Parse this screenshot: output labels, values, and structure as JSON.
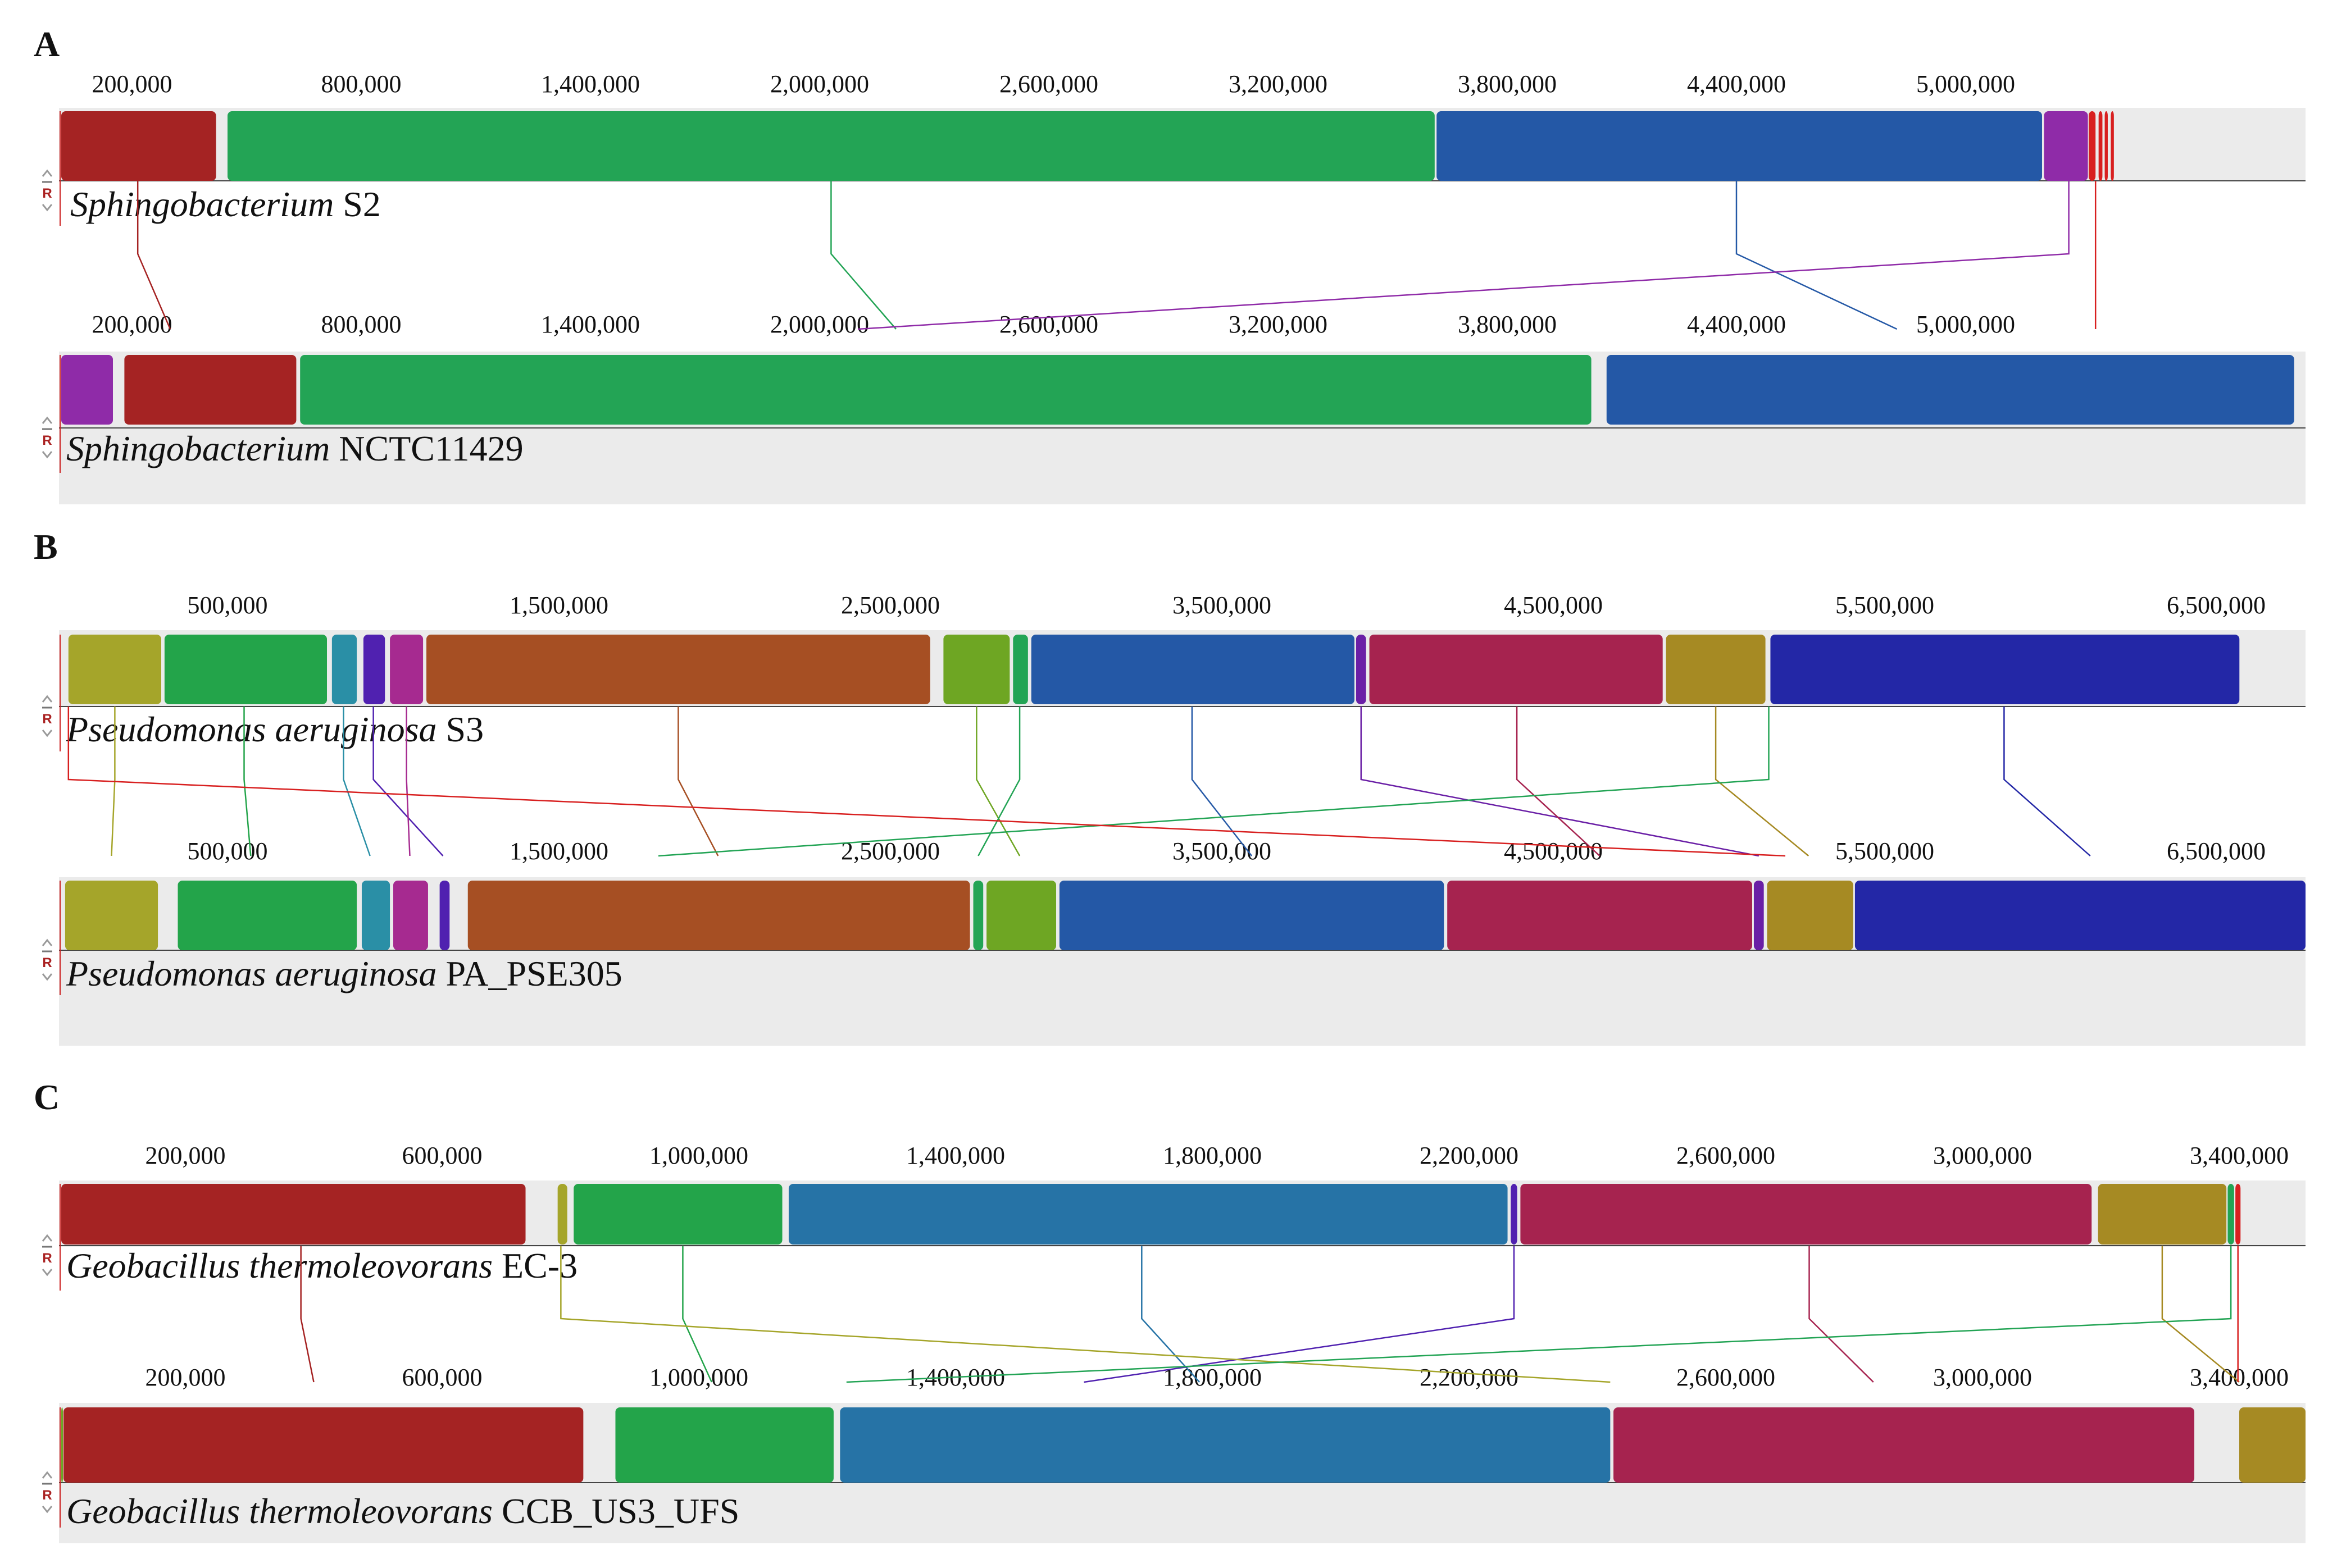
{
  "panels": [
    {
      "letter": "A",
      "genomes": [
        {
          "genus": "Sphingobacterium",
          "strain": "S2",
          "ticks": [
            "200,000",
            "800,000",
            "1,400,000",
            "2,000,000",
            "2,600,000",
            "3,200,000",
            "3,800,000",
            "4,400,000",
            "5,000,000"
          ],
          "blocks": [
            {
              "start": 10000,
              "end": 420000,
              "color": "#a52323"
            },
            {
              "start": 450000,
              "end": 3610000,
              "color": "#23a455"
            },
            {
              "start": 3615000,
              "end": 5200000,
              "color": "#2458a6"
            },
            {
              "start": 5205000,
              "end": 5320000,
              "color": "#8f2ba8"
            },
            {
              "start": 5322000,
              "end": 5340000,
              "color": "#d82020"
            },
            {
              "start": 5348000,
              "end": 5358000,
              "color": "#d82020"
            },
            {
              "start": 5364000,
              "end": 5372000,
              "color": "#d82020"
            },
            {
              "start": 5380000,
              "end": 5388000,
              "color": "#d82020"
            }
          ]
        },
        {
          "genus": "Sphingobacterium",
          "strain": "NCTC11429",
          "ticks": [
            "200,000",
            "800,000",
            "1,400,000",
            "2,000,000",
            "2,600,000",
            "3,200,000",
            "3,800,000",
            "4,400,000",
            "5,000,000"
          ],
          "blocks": [
            {
              "start": 0,
              "end": 150000,
              "color": "#8f2ba8"
            },
            {
              "start": 180000,
              "end": 630000,
              "color": "#a52323"
            },
            {
              "start": 640000,
              "end": 4020000,
              "color": "#23a455"
            },
            {
              "start": 4060000,
              "end": 5860000,
              "color": "#2458a6"
            }
          ]
        }
      ],
      "links": [
        {
          "color": "#a52323",
          "from": 215000,
          "to": 300000
        },
        {
          "color": "#23a455",
          "from": 2030000,
          "to": 2200000
        },
        {
          "color": "#2458a6",
          "from": 4400000,
          "to": 4820000
        },
        {
          "color": "#8f2ba8",
          "from": 5270000,
          "to": 2100000
        },
        {
          "color": "#d82020",
          "from": 5340000,
          "to": 5340000
        }
      ]
    },
    {
      "letter": "B",
      "genomes": [
        {
          "genus": "Pseudomonas aeruginosa",
          "strain": "S3",
          "ticks": [
            "500,000",
            "1,500,000",
            "2,500,000",
            "3,500,000",
            "4,500,000",
            "5,500,000",
            "6,500,000"
          ],
          "blocks": [
            {
              "start": 20000,
              "end": 300000,
              "color": "#a5a52a"
            },
            {
              "start": 310000,
              "end": 800000,
              "color": "#23a44a"
            },
            {
              "start": 815000,
              "end": 890000,
              "color": "#2a8fa6"
            },
            {
              "start": 910000,
              "end": 975000,
              "color": "#5021b0"
            },
            {
              "start": 990000,
              "end": 1090000,
              "color": "#a62a90"
            },
            {
              "start": 1100000,
              "end": 2620000,
              "color": "#a64f23"
            },
            {
              "start": 2660000,
              "end": 2860000,
              "color": "#6ea623"
            },
            {
              "start": 2870000,
              "end": 2915000,
              "color": "#23a455"
            },
            {
              "start": 2925000,
              "end": 3900000,
              "color": "#2458a6"
            },
            {
              "start": 3905000,
              "end": 3935000,
              "color": "#6a1fa6"
            },
            {
              "start": 3945000,
              "end": 4830000,
              "color": "#a6234f"
            },
            {
              "start": 4840000,
              "end": 5140000,
              "color": "#a68a23"
            },
            {
              "start": 5155000,
              "end": 6570000,
              "color": "#2327a6"
            }
          ]
        },
        {
          "genus": "Pseudomonas aeruginosa",
          "strain": "PA_PSE305",
          "ticks": [
            "500,000",
            "1,500,000",
            "2,500,000",
            "3,500,000",
            "4,500,000",
            "5,500,000",
            "6,500,000"
          ],
          "blocks": [
            {
              "start": 10000,
              "end": 290000,
              "color": "#a5a52a"
            },
            {
              "start": 350000,
              "end": 890000,
              "color": "#23a44a"
            },
            {
              "start": 905000,
              "end": 990000,
              "color": "#2a8fa6"
            },
            {
              "start": 1000000,
              "end": 1105000,
              "color": "#a62a90"
            },
            {
              "start": 1140000,
              "end": 1170000,
              "color": "#5021b0"
            },
            {
              "start": 1225000,
              "end": 2740000,
              "color": "#a64f23"
            },
            {
              "start": 2750000,
              "end": 2780000,
              "color": "#23a455"
            },
            {
              "start": 2790000,
              "end": 3000000,
              "color": "#6ea623"
            },
            {
              "start": 3010000,
              "end": 4170000,
              "color": "#2458a6"
            },
            {
              "start": 4180000,
              "end": 5100000,
              "color": "#a6234f"
            },
            {
              "start": 5105000,
              "end": 5135000,
              "color": "#6a1fa6"
            },
            {
              "start": 5145000,
              "end": 5405000,
              "color": "#a68a23"
            },
            {
              "start": 5410000,
              "end": 6830000,
              "color": "#2327a6"
            }
          ]
        }
      ],
      "links": [
        {
          "color": "#a5a52a",
          "from": 160000,
          "to": 150000
        },
        {
          "color": "#23a44a",
          "from": 550000,
          "to": 570000
        },
        {
          "color": "#2a8fa6",
          "from": 850000,
          "to": 930000
        },
        {
          "color": "#5021b0",
          "from": 940000,
          "to": 1150000
        },
        {
          "color": "#a62a90",
          "from": 1040000,
          "to": 1050000
        },
        {
          "color": "#a64f23",
          "from": 1860000,
          "to": 1980000
        },
        {
          "color": "#6ea623",
          "from": 2760000,
          "to": 2890000
        },
        {
          "color": "#23a455",
          "from": 2890000,
          "to": 2765000
        },
        {
          "color": "#2458a6",
          "from": 3410000,
          "to": 3590000
        },
        {
          "color": "#6a1fa6",
          "from": 3920000,
          "to": 5120000
        },
        {
          "color": "#a6234f",
          "from": 4390000,
          "to": 4640000
        },
        {
          "color": "#a68a23",
          "from": 4990000,
          "to": 5270000
        },
        {
          "color": "#2327a6",
          "from": 5860000,
          "to": 6120000
        },
        {
          "color": "#23a455",
          "from": 5150000,
          "to": 1800000
        },
        {
          "color": "#d82020",
          "from": 20000,
          "to": 5200000
        }
      ]
    },
    {
      "letter": "C",
      "genomes": [
        {
          "genus": "Geobacillus thermoleovorans",
          "strain": "EC-3",
          "ticks": [
            "200,000",
            "600,000",
            "1,000,000",
            "1,400,000",
            "1,800,000",
            "2,200,000",
            "2,600,000",
            "3,000,000",
            "3,400,000"
          ],
          "blocks": [
            {
              "start": 0,
              "end": 730000,
              "color": "#a52323"
            },
            {
              "start": 780000,
              "end": 795000,
              "color": "#a5a52a"
            },
            {
              "start": 805000,
              "end": 1130000,
              "color": "#23a44a"
            },
            {
              "start": 1140000,
              "end": 2260000,
              "color": "#2673a6"
            },
            {
              "start": 2265000,
              "end": 2275000,
              "color": "#5021b0"
            },
            {
              "start": 2280000,
              "end": 3170000,
              "color": "#a6234f"
            },
            {
              "start": 3180000,
              "end": 3380000,
              "color": "#a68a23"
            },
            {
              "start": 3382000,
              "end": 3392000,
              "color": "#23a455"
            },
            {
              "start": 3394000,
              "end": 3402000,
              "color": "#d82020"
            }
          ]
        },
        {
          "genus": "Geobacillus thermoleovorans",
          "strain": "CCB_US3_UFS",
          "ticks": [
            "200,000",
            "600,000",
            "1,000,000",
            "1,400,000",
            "1,800,000",
            "2,200,000",
            "2,600,000",
            "3,000,000",
            "3,400,000"
          ],
          "blocks": [
            {
              "start": 0,
              "end": 8000,
              "color": "#6ea623"
            },
            {
              "start": 10000,
              "end": 820000,
              "color": "#a52323"
            },
            {
              "start": 870000,
              "end": 1210000,
              "color": "#23a44a"
            },
            {
              "start": 1220000,
              "end": 2420000,
              "color": "#2673a6"
            },
            {
              "start": 2425000,
              "end": 3330000,
              "color": "#a6234f"
            },
            {
              "start": 3400000,
              "end": 3590000,
              "color": "#a68a23"
            }
          ]
        }
      ],
      "links": [
        {
          "color": "#a52323",
          "from": 380000,
          "to": 400000
        },
        {
          "color": "#23a44a",
          "from": 975000,
          "to": 1020000
        },
        {
          "color": "#2673a6",
          "from": 1690000,
          "to": 1780000
        },
        {
          "color": "#5021b0",
          "from": 2270000,
          "to": 1600000
        },
        {
          "color": "#a6234f",
          "from": 2730000,
          "to": 2830000
        },
        {
          "color": "#a68a23",
          "from": 3280000,
          "to": 3400000
        },
        {
          "color": "#a5a52a",
          "from": 785000,
          "to": 2420000
        },
        {
          "color": "#23a455",
          "from": 3387000,
          "to": 1230000
        },
        {
          "color": "#d82020",
          "from": 3398000,
          "to": 3398000
        }
      ]
    }
  ]
}
